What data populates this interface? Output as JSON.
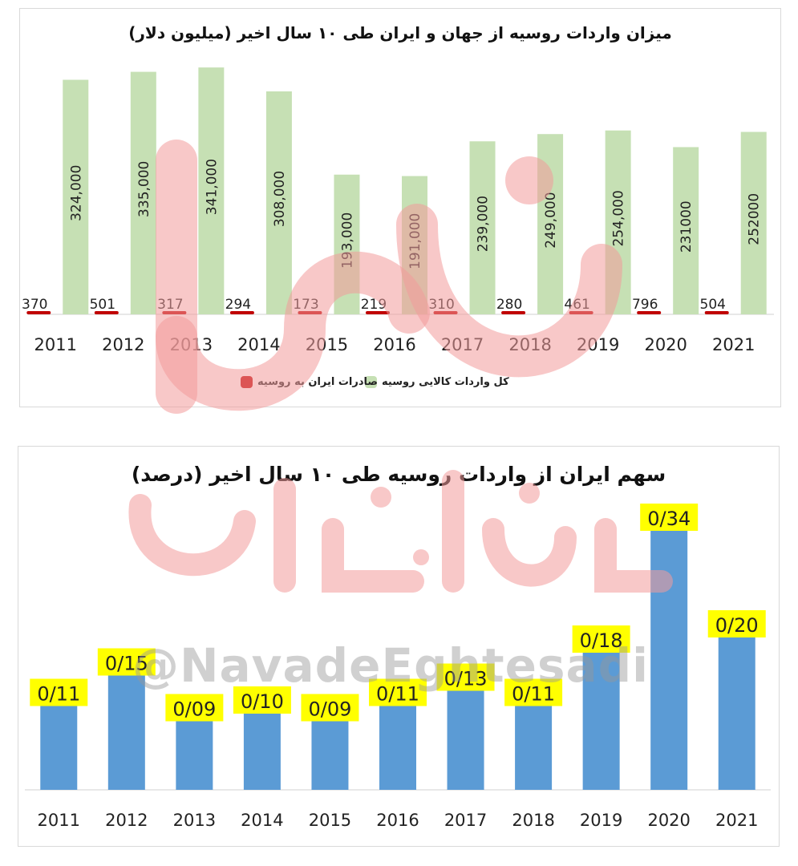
{
  "charts": {
    "imports": {
      "title": "میزان واردات روسیه از جهان و  ایران طی ۱۰ سال اخیر (میلیون دلار)",
      "legend": [
        {
          "label": "کل واردات کالایی روسیه",
          "color": "#c6e0b4"
        },
        {
          "label": "صادرات ایران به روسیه",
          "color": "#c00000"
        }
      ]
    },
    "share": {
      "title": "سهم ایران از واردات روسیه طی ۱۰ سال اخیر (درصد)"
    }
  },
  "watermark": {
    "handle": "@NavadeEghtesadi",
    "brand_color": "#f2a0a0"
  },
  "chart_data": [
    {
      "type": "bar",
      "title": "میزان واردات روسیه از جهان و  ایران طی ۱۰ سال اخیر (میلیون دلار)",
      "categories": [
        "2011",
        "2012",
        "2013",
        "2014",
        "2015",
        "2016",
        "2017",
        "2018",
        "2019",
        "2020",
        "2021"
      ],
      "series": [
        {
          "name": "صادرات ایران به روسیه",
          "color": "#c00000",
          "values": [
            370,
            501,
            317,
            294,
            173,
            219,
            310,
            280,
            461,
            796,
            504
          ],
          "labels": [
            "370",
            "501",
            "317",
            "294",
            "173",
            "219",
            "310",
            "280",
            "461",
            "796",
            "504"
          ]
        },
        {
          "name": "کل واردات کالایی روسیه",
          "color": "#c6e0b4",
          "values": [
            324000,
            335000,
            341000,
            308000,
            193000,
            191000,
            239000,
            249000,
            254000,
            231000,
            252000
          ],
          "labels": [
            "324,000",
            "335,000",
            "341,000",
            "308,000",
            "193,000",
            "191,000",
            "239,000",
            "249,000",
            "254,000",
            "231000",
            "252000"
          ]
        }
      ],
      "ylim": [
        0,
        360000
      ],
      "grid": false,
      "legend_position": "bottom"
    },
    {
      "type": "bar",
      "title": "سهم ایران از واردات روسیه طی ۱۰ سال اخیر (درصد)",
      "categories": [
        "2011",
        "2012",
        "2013",
        "2014",
        "2015",
        "2016",
        "2017",
        "2018",
        "2019",
        "2020",
        "2021"
      ],
      "values": [
        0.11,
        0.15,
        0.09,
        0.1,
        0.09,
        0.11,
        0.13,
        0.11,
        0.18,
        0.34,
        0.2
      ],
      "labels": [
        "0/11",
        "0/15",
        "0/09",
        "0/10",
        "0/09",
        "0/11",
        "0/13",
        "0/11",
        "0/18",
        "0/34",
        "0/20"
      ],
      "bar_color": "#5b9bd5",
      "label_background": "#ffff00",
      "ylim": [
        0,
        0.4
      ],
      "grid": false
    }
  ]
}
